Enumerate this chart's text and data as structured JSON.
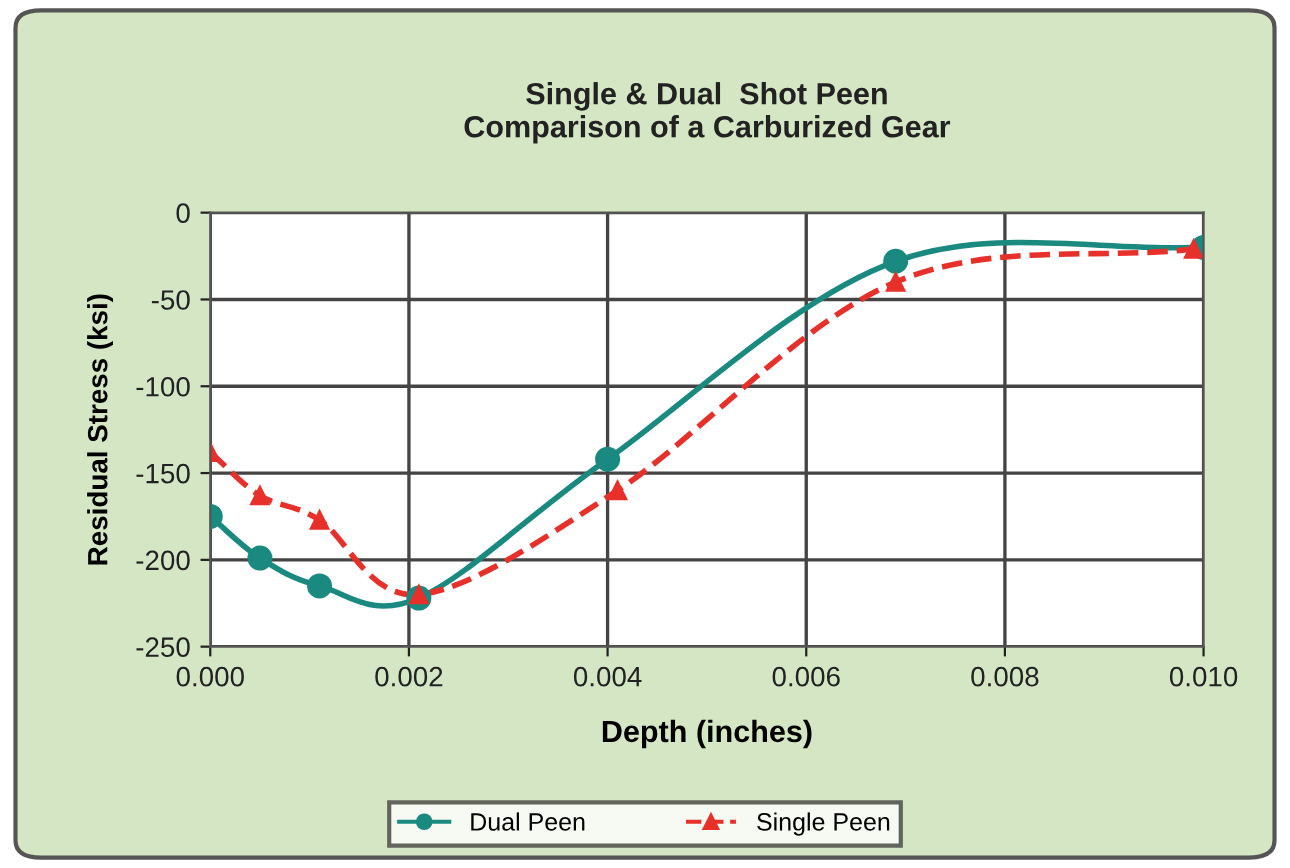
{
  "chart_data": {
    "type": "line",
    "title": "Single & Dual  Shot Peen\nComparison of a Carburized Gear",
    "xlabel": "Depth (inches)",
    "ylabel": "Residual Stress (ksi)",
    "xlim": [
      0,
      0.01
    ],
    "xticks": [
      {
        "value": 0,
        "label": "0.000"
      },
      {
        "value": 0.002,
        "label": "0.002"
      },
      {
        "value": 0.004,
        "label": "0.004"
      },
      {
        "value": 0.006,
        "label": "0.006"
      },
      {
        "value": 0.008,
        "label": "0.008"
      },
      {
        "value": 0.01,
        "label": "0.010"
      }
    ],
    "ylim": [
      -250,
      0
    ],
    "yticks": [
      -250,
      -200,
      -150,
      -100,
      -50,
      0
    ],
    "grid": true,
    "legend": "bottom",
    "series": [
      {
        "name": "Dual Peen",
        "color": "#1a8a80",
        "marker": "circle",
        "line_style": "solid",
        "x": [
          0,
          0.0005,
          0.0011,
          0.0021,
          0.004,
          0.0069,
          0.01
        ],
        "values": [
          -175,
          -199,
          -215,
          -222,
          -142,
          -28,
          -20
        ]
      },
      {
        "name": "Single Peen",
        "color": "#e8302a",
        "marker": "triangle",
        "line_style": "dashed",
        "x": [
          0,
          0.0005,
          0.0011,
          0.0021,
          0.0041,
          0.0069,
          0.0099
        ],
        "values": [
          -138,
          -163,
          -177,
          -220,
          -160,
          -40,
          -21
        ]
      }
    ]
  }
}
